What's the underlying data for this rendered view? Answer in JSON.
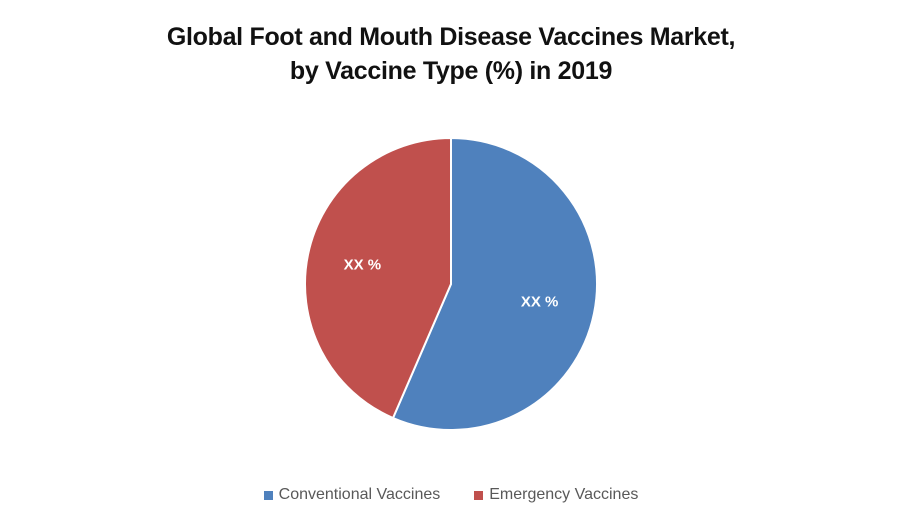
{
  "chart_data": {
    "type": "pie",
    "title_lines": [
      "Global Foot and Mouth Disease Vaccines Market,",
      "by Vaccine Type (%) in 2019"
    ],
    "slices": [
      {
        "name": "Conventional Vaccines",
        "value": 56.5,
        "label": "XX %",
        "color": "#4F81BD"
      },
      {
        "name": "Emergency Vaccines",
        "value": 43.5,
        "label": "XX %",
        "color": "#C0504D"
      }
    ],
    "start_angle": "12 o'clock",
    "direction": "clockwise",
    "legend_position": "bottom"
  }
}
